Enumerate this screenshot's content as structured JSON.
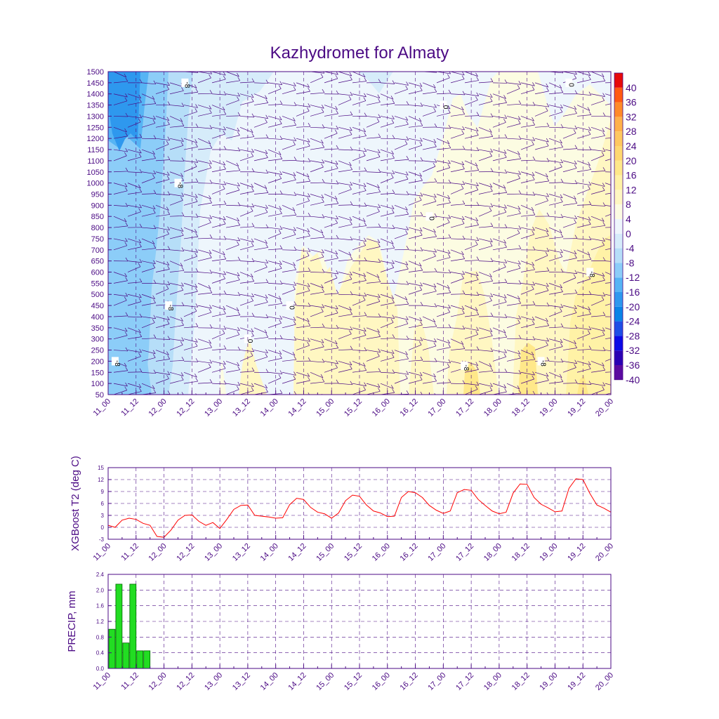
{
  "title": "Kazhydromet for Almaty",
  "colors": {
    "axis": "#4b0a84",
    "t2_line": "#ff0000",
    "precip_fill": "#22dd22",
    "precip_stroke": "#006600",
    "wind_barb": "#4b0a84"
  },
  "x_ticks": [
    "11_00",
    "11_12",
    "12_00",
    "12_12",
    "13_00",
    "13_12",
    "14_00",
    "14_12",
    "15_00",
    "15_12",
    "16_00",
    "16_12",
    "17_00",
    "17_12",
    "18_00",
    "18_12",
    "19_00",
    "19_12",
    "20_00"
  ],
  "chart_data": [
    {
      "type": "heatmap",
      "title": "Kazhydromet for Almaty",
      "y_axis": {
        "min": 50,
        "max": 1500,
        "ticks": [
          1500,
          1450,
          1400,
          1350,
          1300,
          1250,
          1200,
          1150,
          1100,
          1050,
          1000,
          950,
          900,
          850,
          800,
          750,
          700,
          650,
          600,
          550,
          500,
          450,
          400,
          350,
          300,
          250,
          200,
          150,
          100,
          50
        ]
      },
      "colorbar": {
        "labels": [
          40,
          36,
          32,
          28,
          24,
          20,
          16,
          12,
          8,
          4,
          0,
          -4,
          -8,
          -12,
          -16,
          -20,
          -24,
          -28,
          -32,
          -36,
          -40
        ],
        "colors": [
          "#5b0aa0",
          "#2a00b4",
          "#0a0ae6",
          "#1e4ee6",
          "#0a84e6",
          "#2e98ee",
          "#56b4f4",
          "#8ccdf8",
          "#b6def8",
          "#d6ecfa",
          "#eef6fc",
          "#fcfce2",
          "#fff7c2",
          "#fff2a6",
          "#ffe88a",
          "#ffd870",
          "#ffc860",
          "#ffb14a",
          "#ff8a2a",
          "#ff5a12",
          "#e60a0a"
        ]
      },
      "contour_labels": [
        {
          "value": "-8",
          "x": "11_03",
          "y": 200
        },
        {
          "value": "-8",
          "x": "12_02",
          "y": 450
        },
        {
          "value": "-8",
          "x": "12_06",
          "y": 1000
        },
        {
          "value": "-8",
          "x": "12_09",
          "y": 1450
        },
        {
          "value": "0",
          "x": "13_12",
          "y": 300
        },
        {
          "value": "0",
          "x": "14_06",
          "y": 450
        },
        {
          "value": "0",
          "x": "16_18",
          "y": 850
        },
        {
          "value": "0",
          "x": "17_00",
          "y": 1350
        },
        {
          "value": "-8",
          "x": "17_09",
          "y": 180
        },
        {
          "value": "-8",
          "x": "18_18",
          "y": 200
        },
        {
          "value": "0",
          "x": "19_06",
          "y": 1450
        },
        {
          "value": "-8",
          "x": "19_15",
          "y": 600
        }
      ]
    },
    {
      "type": "line",
      "ylabel": "XGBoost T2 (deg C)",
      "ylim": [
        -3,
        15
      ],
      "y_ticks": [
        -3,
        0,
        3,
        6,
        9,
        12,
        15
      ],
      "x_range_hours": [
        0,
        216
      ],
      "series": [
        {
          "x": [
            0,
            3,
            6,
            9,
            12,
            15,
            18,
            21,
            24,
            27,
            30,
            33,
            36,
            39,
            42,
            45,
            48,
            51,
            54,
            57,
            60,
            63,
            66,
            69,
            72,
            75,
            78,
            81,
            84,
            87,
            90,
            93,
            96,
            99,
            102,
            105,
            108,
            111,
            114,
            117,
            120,
            123,
            126,
            129,
            132,
            135,
            138,
            141,
            144,
            147,
            150,
            153,
            156,
            159,
            162,
            165,
            168,
            171,
            174,
            177,
            180,
            183,
            186,
            189,
            192,
            195,
            198,
            201,
            204,
            207,
            210,
            213,
            216
          ],
          "values": [
            0.5,
            0.0,
            1.8,
            2.3,
            2.0,
            1.0,
            0.5,
            -2.3,
            -2.5,
            -0.7,
            1.8,
            3.0,
            3.1,
            1.5,
            0.5,
            1.2,
            -0.3,
            2.0,
            4.5,
            5.5,
            5.6,
            3.0,
            2.8,
            2.6,
            2.3,
            2.4,
            5.7,
            7.3,
            7.0,
            5.0,
            3.8,
            3.4,
            2.3,
            3.6,
            6.7,
            8.1,
            7.8,
            5.6,
            4.1,
            3.6,
            2.7,
            2.8,
            7.5,
            9.0,
            8.7,
            7.5,
            5.5,
            4.3,
            3.5,
            4.1,
            8.7,
            9.5,
            9.3,
            7.0,
            5.5,
            4.1,
            3.4,
            3.8,
            8.6,
            10.9,
            10.8,
            7.5,
            5.8,
            4.9,
            3.9,
            4.1,
            9.8,
            12.2,
            12.0,
            8.5,
            5.6,
            4.8,
            3.8
          ]
        }
      ]
    },
    {
      "type": "bar",
      "ylabel": "PRECIP, mm",
      "ylim": [
        0,
        2.4
      ],
      "y_ticks": [
        0.0,
        0.4,
        0.8,
        1.2,
        1.6,
        2.0,
        2.4
      ],
      "x_range_hours": [
        0,
        216
      ],
      "x": [
        3,
        6,
        9,
        12,
        15,
        18
      ],
      "values": [
        1.0,
        2.15,
        0.65,
        2.15,
        0.45,
        0.45
      ]
    }
  ]
}
